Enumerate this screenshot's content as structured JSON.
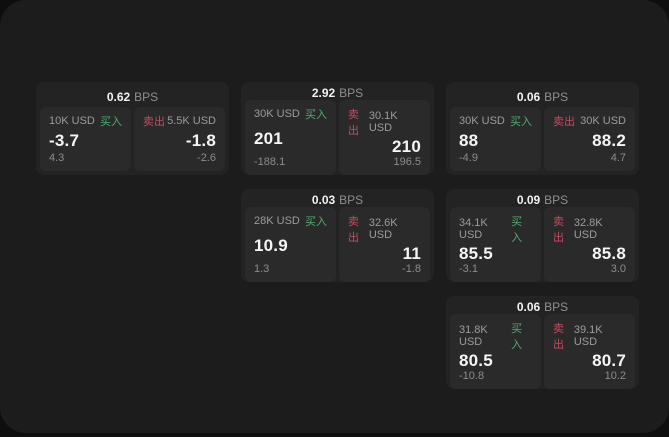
{
  "labels": {
    "bps": "BPS",
    "buy": "买入",
    "sell": "卖出"
  },
  "colors": {
    "buy": "#4cae70",
    "sell": "#c84a60"
  },
  "cards": [
    {
      "bps": "0.62",
      "buy": {
        "size": "10K USD",
        "value": "-3.7",
        "delta": "4.3"
      },
      "sell": {
        "size": "5.5K USD",
        "value": "-1.8",
        "delta": "-2.6"
      }
    },
    {
      "bps": "2.92",
      "buy": {
        "size": "30K USD",
        "value": "201",
        "delta": "-188.1"
      },
      "sell": {
        "size": "30.1K USD",
        "value": "210",
        "delta": "196.5"
      }
    },
    {
      "bps": "0.06",
      "buy": {
        "size": "30K USD",
        "value": "88",
        "delta": "-4.9"
      },
      "sell": {
        "size": "30K USD",
        "value": "88.2",
        "delta": "4.7"
      }
    },
    {
      "bps": "0.03",
      "buy": {
        "size": "28K USD",
        "value": "10.9",
        "delta": "1.3"
      },
      "sell": {
        "size": "32.6K USD",
        "value": "11",
        "delta": "-1.8"
      }
    },
    {
      "bps": "0.09",
      "buy": {
        "size": "34.1K USD",
        "value": "85.5",
        "delta": "-3.1"
      },
      "sell": {
        "size": "32.8K USD",
        "value": "85.8",
        "delta": "3.0"
      }
    },
    {
      "bps": "0.06",
      "buy": {
        "size": "31.8K USD",
        "value": "80.5",
        "delta": "-10.8"
      },
      "sell": {
        "size": "39.1K USD",
        "value": "80.7",
        "delta": "10.2"
      }
    }
  ]
}
